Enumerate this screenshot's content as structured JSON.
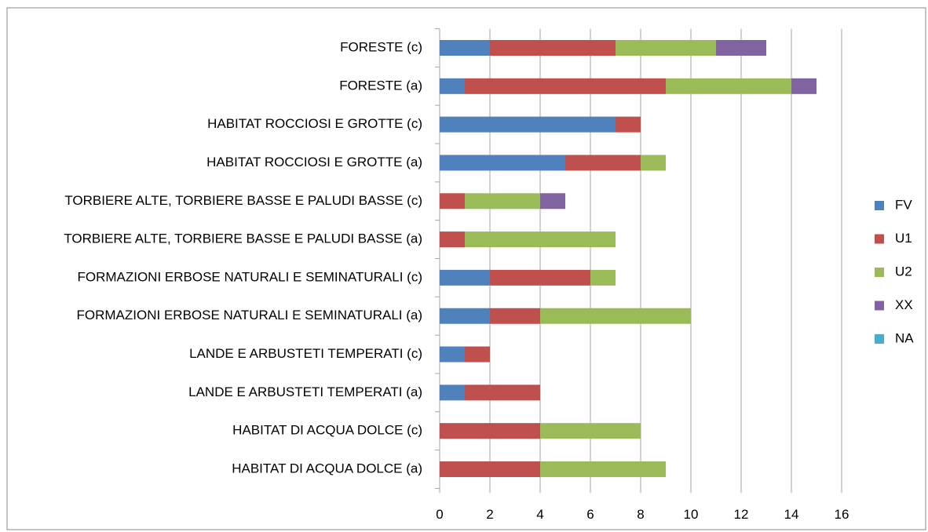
{
  "chart_data": {
    "type": "stacked-bar-horizontal",
    "categories": [
      "FORESTE (c)",
      "FORESTE (a)",
      "HABITAT ROCCIOSI E GROTTE (c)",
      "HABITAT ROCCIOSI E GROTTE (a)",
      "TORBIERE ALTE, TORBIERE BASSE E PALUDI BASSE (c)",
      "TORBIERE ALTE, TORBIERE BASSE E PALUDI BASSE (a)",
      "FORMAZIONI ERBOSE NATURALI E SEMINATURALI (c)",
      "FORMAZIONI ERBOSE NATURALI E SEMINATURALI (a)",
      "LANDE E ARBUSTETI TEMPERATI (c)",
      "LANDE E ARBUSTETI TEMPERATI (a)",
      "HABITAT DI ACQUA DOLCE (c)",
      "HABITAT DI ACQUA DOLCE (a)"
    ],
    "series": [
      {
        "name": "FV",
        "color": "#4f81bd",
        "values": [
          2,
          1,
          7,
          5,
          0,
          0,
          2,
          2,
          1,
          1,
          0,
          0
        ]
      },
      {
        "name": "U1",
        "color": "#c0504d",
        "values": [
          5,
          8,
          1,
          3,
          1,
          1,
          4,
          2,
          1,
          3,
          4,
          4
        ]
      },
      {
        "name": "U2",
        "color": "#9bbb59",
        "values": [
          4,
          5,
          0,
          1,
          3,
          6,
          1,
          6,
          0,
          0,
          4,
          5
        ]
      },
      {
        "name": "XX",
        "color": "#8064a2",
        "values": [
          2,
          1,
          0,
          0,
          1,
          0,
          0,
          0,
          0,
          0,
          0,
          0
        ]
      },
      {
        "name": "NA",
        "color": "#4bacc6",
        "values": [
          0,
          0,
          0,
          0,
          0,
          0,
          0,
          0,
          0,
          0,
          0,
          0
        ]
      }
    ],
    "xlim": [
      0,
      16
    ],
    "xticks": [
      0,
      2,
      4,
      6,
      8,
      10,
      12,
      14,
      16
    ],
    "grid": true,
    "legend": "right"
  }
}
